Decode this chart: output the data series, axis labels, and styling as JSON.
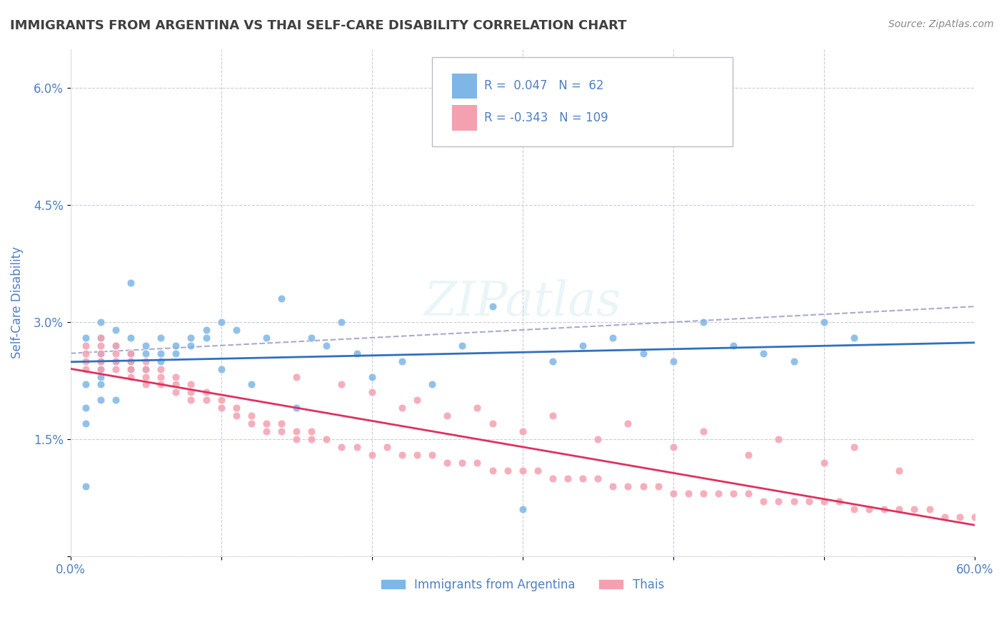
{
  "title": "IMMIGRANTS FROM ARGENTINA VS THAI SELF-CARE DISABILITY CORRELATION CHART",
  "source": "Source: ZipAtlas.com",
  "ylabel": "Self-Care Disability",
  "xlabel": "",
  "xlim": [
    0.0,
    0.6
  ],
  "ylim": [
    0.0,
    0.065
  ],
  "xticks": [
    0.0,
    0.1,
    0.2,
    0.3,
    0.4,
    0.5,
    0.6
  ],
  "xticklabels": [
    "0.0%",
    "",
    "",
    "",
    "",
    "",
    "60.0%"
  ],
  "yticks": [
    0.0,
    0.015,
    0.03,
    0.045,
    0.06
  ],
  "yticklabels": [
    "",
    "1.5%",
    "3.0%",
    "4.5%",
    "6.0%"
  ],
  "legend_label1": "Immigrants from Argentina",
  "legend_label2": "Thais",
  "R1": 0.047,
  "N1": 62,
  "R2": -0.343,
  "N2": 109,
  "color1": "#7EB6E8",
  "color2": "#F4A0B0",
  "trend1_color": "#3070C0",
  "trend2_color": "#E03060",
  "dashed_color": "#AAAACC",
  "background": "#FFFFFF",
  "grid_color": "#CCCCDD",
  "title_color": "#404040",
  "axis_label_color": "#5080C0",
  "watermark": "ZIPatlas",
  "argentina_x": [
    0.01,
    0.01,
    0.01,
    0.01,
    0.01,
    0.02,
    0.02,
    0.02,
    0.02,
    0.02,
    0.02,
    0.02,
    0.02,
    0.03,
    0.03,
    0.03,
    0.03,
    0.04,
    0.04,
    0.04,
    0.04,
    0.04,
    0.05,
    0.05,
    0.05,
    0.06,
    0.06,
    0.06,
    0.07,
    0.07,
    0.08,
    0.08,
    0.09,
    0.09,
    0.1,
    0.1,
    0.11,
    0.12,
    0.13,
    0.14,
    0.15,
    0.16,
    0.17,
    0.18,
    0.19,
    0.2,
    0.22,
    0.24,
    0.26,
    0.28,
    0.3,
    0.32,
    0.34,
    0.36,
    0.38,
    0.4,
    0.42,
    0.44,
    0.46,
    0.48,
    0.5,
    0.52
  ],
  "argentina_y": [
    0.028,
    0.022,
    0.019,
    0.017,
    0.009,
    0.03,
    0.028,
    0.026,
    0.025,
    0.024,
    0.023,
    0.022,
    0.02,
    0.029,
    0.027,
    0.025,
    0.02,
    0.028,
    0.026,
    0.025,
    0.024,
    0.035,
    0.027,
    0.026,
    0.024,
    0.028,
    0.026,
    0.025,
    0.027,
    0.026,
    0.028,
    0.027,
    0.029,
    0.028,
    0.03,
    0.024,
    0.029,
    0.022,
    0.028,
    0.033,
    0.019,
    0.028,
    0.027,
    0.03,
    0.026,
    0.023,
    0.025,
    0.022,
    0.027,
    0.032,
    0.006,
    0.025,
    0.027,
    0.028,
    0.026,
    0.025,
    0.03,
    0.027,
    0.026,
    0.025,
    0.03,
    0.028
  ],
  "thai_x": [
    0.01,
    0.01,
    0.01,
    0.01,
    0.02,
    0.02,
    0.02,
    0.02,
    0.02,
    0.03,
    0.03,
    0.03,
    0.03,
    0.04,
    0.04,
    0.04,
    0.04,
    0.05,
    0.05,
    0.05,
    0.05,
    0.06,
    0.06,
    0.06,
    0.07,
    0.07,
    0.07,
    0.08,
    0.08,
    0.08,
    0.09,
    0.09,
    0.1,
    0.1,
    0.11,
    0.11,
    0.12,
    0.12,
    0.13,
    0.13,
    0.14,
    0.14,
    0.15,
    0.15,
    0.16,
    0.16,
    0.17,
    0.18,
    0.19,
    0.2,
    0.21,
    0.22,
    0.23,
    0.24,
    0.25,
    0.26,
    0.27,
    0.28,
    0.29,
    0.3,
    0.31,
    0.32,
    0.33,
    0.34,
    0.35,
    0.36,
    0.37,
    0.38,
    0.39,
    0.4,
    0.41,
    0.42,
    0.43,
    0.44,
    0.45,
    0.46,
    0.47,
    0.48,
    0.49,
    0.5,
    0.51,
    0.52,
    0.53,
    0.54,
    0.55,
    0.56,
    0.57,
    0.58,
    0.59,
    0.6,
    0.2,
    0.22,
    0.25,
    0.28,
    0.3,
    0.35,
    0.4,
    0.45,
    0.5,
    0.55,
    0.15,
    0.18,
    0.23,
    0.27,
    0.32,
    0.37,
    0.42,
    0.47,
    0.52
  ],
  "thai_y": [
    0.027,
    0.026,
    0.025,
    0.024,
    0.028,
    0.027,
    0.026,
    0.025,
    0.024,
    0.027,
    0.026,
    0.025,
    0.024,
    0.026,
    0.025,
    0.024,
    0.023,
    0.025,
    0.024,
    0.023,
    0.022,
    0.024,
    0.023,
    0.022,
    0.023,
    0.022,
    0.021,
    0.022,
    0.021,
    0.02,
    0.021,
    0.02,
    0.02,
    0.019,
    0.019,
    0.018,
    0.018,
    0.017,
    0.017,
    0.016,
    0.017,
    0.016,
    0.016,
    0.015,
    0.016,
    0.015,
    0.015,
    0.014,
    0.014,
    0.013,
    0.014,
    0.013,
    0.013,
    0.013,
    0.012,
    0.012,
    0.012,
    0.011,
    0.011,
    0.011,
    0.011,
    0.01,
    0.01,
    0.01,
    0.01,
    0.009,
    0.009,
    0.009,
    0.009,
    0.008,
    0.008,
    0.008,
    0.008,
    0.008,
    0.008,
    0.007,
    0.007,
    0.007,
    0.007,
    0.007,
    0.007,
    0.006,
    0.006,
    0.006,
    0.006,
    0.006,
    0.006,
    0.005,
    0.005,
    0.005,
    0.021,
    0.019,
    0.018,
    0.017,
    0.016,
    0.015,
    0.014,
    0.013,
    0.012,
    0.011,
    0.023,
    0.022,
    0.02,
    0.019,
    0.018,
    0.017,
    0.016,
    0.015,
    0.014
  ]
}
